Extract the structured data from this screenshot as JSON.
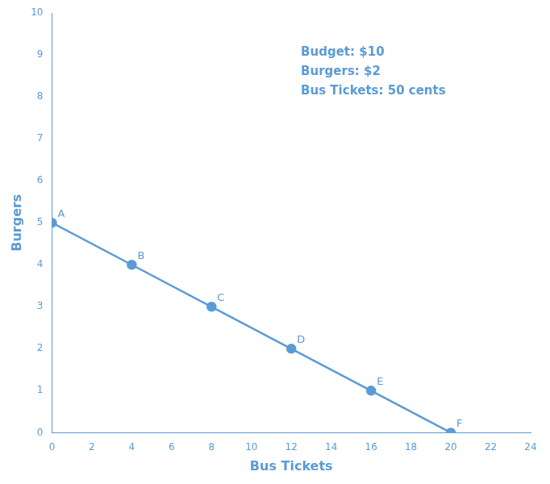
{
  "chart_data": {
    "type": "line",
    "x": [
      0,
      4,
      8,
      12,
      16,
      20
    ],
    "values": [
      5,
      4,
      3,
      2,
      1,
      0
    ],
    "point_labels": [
      "A",
      "B",
      "C",
      "D",
      "E",
      "F"
    ],
    "color": "#5B9BD5",
    "x_label": "Bus Tickets",
    "y_label": "Burgers",
    "annotation": "Budget: $10\nBurgers: $2\nBus Tickets: 50 cents",
    "xlim": [
      0,
      24
    ],
    "ylim": [
      0,
      10
    ],
    "xticks": [
      0,
      2,
      4,
      6,
      8,
      10,
      12,
      14,
      16,
      18,
      20,
      22,
      24
    ],
    "yticks": [
      0,
      1,
      2,
      3,
      4,
      5,
      6,
      7,
      8,
      9,
      10
    ],
    "grid": false,
    "marker": "circle"
  }
}
